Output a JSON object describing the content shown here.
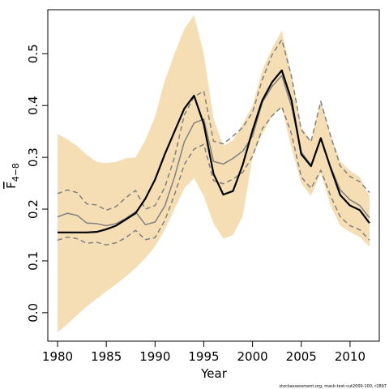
{
  "chart_data": {
    "type": "line",
    "xlabel": "Year",
    "ylabel_main": "F",
    "ylabel_sub": "4−8",
    "xlim": [
      1979,
      2013
    ],
    "ylim": [
      -0.055,
      0.585
    ],
    "x_ticks": [
      1980,
      1985,
      1990,
      1995,
      2000,
      2005,
      2010
    ],
    "y_ticks": [
      0.0,
      0.1,
      0.2,
      0.3,
      0.4,
      0.5
    ],
    "y_tick_labels": [
      "0.0",
      "0.1",
      "0.2",
      "0.3",
      "0.4",
      "0.5"
    ],
    "grid": false,
    "x": [
      1980,
      1981,
      1982,
      1983,
      1984,
      1985,
      1986,
      1987,
      1988,
      1989,
      1990,
      1991,
      1992,
      1993,
      1994,
      1995,
      1996,
      1997,
      1998,
      1999,
      2000,
      2001,
      2002,
      2003,
      2004,
      2005,
      2006,
      2007,
      2008,
      2009,
      2010,
      2011,
      2012
    ],
    "series": [
      {
        "role": "band_upper",
        "color": "#f5deb3",
        "values": [
          0.345,
          0.335,
          0.322,
          0.305,
          0.291,
          0.289,
          0.291,
          0.298,
          0.3,
          0.333,
          0.378,
          0.448,
          0.5,
          0.548,
          0.575,
          0.5,
          0.375,
          0.322,
          0.333,
          0.365,
          0.4,
          0.468,
          0.51,
          0.545,
          0.46,
          0.358,
          0.332,
          0.41,
          0.345,
          0.292,
          0.274,
          0.262,
          0.225
        ]
      },
      {
        "role": "band_lower",
        "color": "#f5deb3",
        "values": [
          -0.038,
          -0.022,
          -0.005,
          0.012,
          0.027,
          0.041,
          0.055,
          0.07,
          0.086,
          0.105,
          0.128,
          0.16,
          0.2,
          0.24,
          0.26,
          0.225,
          0.172,
          0.143,
          0.15,
          0.187,
          0.3,
          0.345,
          0.38,
          0.395,
          0.318,
          0.25,
          0.225,
          0.27,
          0.207,
          0.168,
          0.156,
          0.146,
          0.127
        ]
      },
      {
        "role": "main",
        "color": "#000000",
        "values": [
          0.155,
          0.155,
          0.155,
          0.155,
          0.156,
          0.161,
          0.168,
          0.18,
          0.192,
          0.22,
          0.257,
          0.306,
          0.35,
          0.394,
          0.419,
          0.364,
          0.268,
          0.228,
          0.235,
          0.286,
          0.352,
          0.41,
          0.445,
          0.468,
          0.41,
          0.306,
          0.283,
          0.337,
          0.28,
          0.227,
          0.207,
          0.198,
          0.173
        ]
      },
      {
        "role": "retro_peel",
        "color": "#808080",
        "values": [
          0.185,
          0.192,
          0.188,
          0.173,
          0.172,
          0.168,
          0.172,
          0.182,
          0.195,
          0.17,
          0.175,
          0.206,
          0.262,
          0.33,
          0.366,
          0.374,
          0.292,
          0.287,
          0.298,
          0.312,
          0.341,
          0.406,
          0.437,
          0.458,
          0.398,
          0.31,
          0.285,
          0.335,
          0.282,
          0.237,
          0.218,
          0.207,
          0.183
        ]
      },
      {
        "role": "retro_peel_upper",
        "color": "#808080",
        "values": [
          0.23,
          0.237,
          0.232,
          0.21,
          0.208,
          0.198,
          0.205,
          0.222,
          0.236,
          0.2,
          0.207,
          0.242,
          0.3,
          0.382,
          0.417,
          0.428,
          0.331,
          0.326,
          0.341,
          0.358,
          0.387,
          0.45,
          0.498,
          0.527,
          0.456,
          0.353,
          0.33,
          0.408,
          0.342,
          0.283,
          0.263,
          0.253,
          0.232
        ]
      },
      {
        "role": "retro_peel_lower",
        "color": "#808080",
        "values": [
          0.14,
          0.146,
          0.143,
          0.134,
          0.136,
          0.131,
          0.135,
          0.145,
          0.159,
          0.141,
          0.145,
          0.178,
          0.228,
          0.286,
          0.316,
          0.325,
          0.255,
          0.249,
          0.258,
          0.271,
          0.302,
          0.355,
          0.38,
          0.398,
          0.345,
          0.262,
          0.24,
          0.275,
          0.226,
          0.185,
          0.168,
          0.16,
          0.14
        ]
      }
    ]
  },
  "footer_text": "stockassessment.org, mack-test-cut2000-100, r2897"
}
